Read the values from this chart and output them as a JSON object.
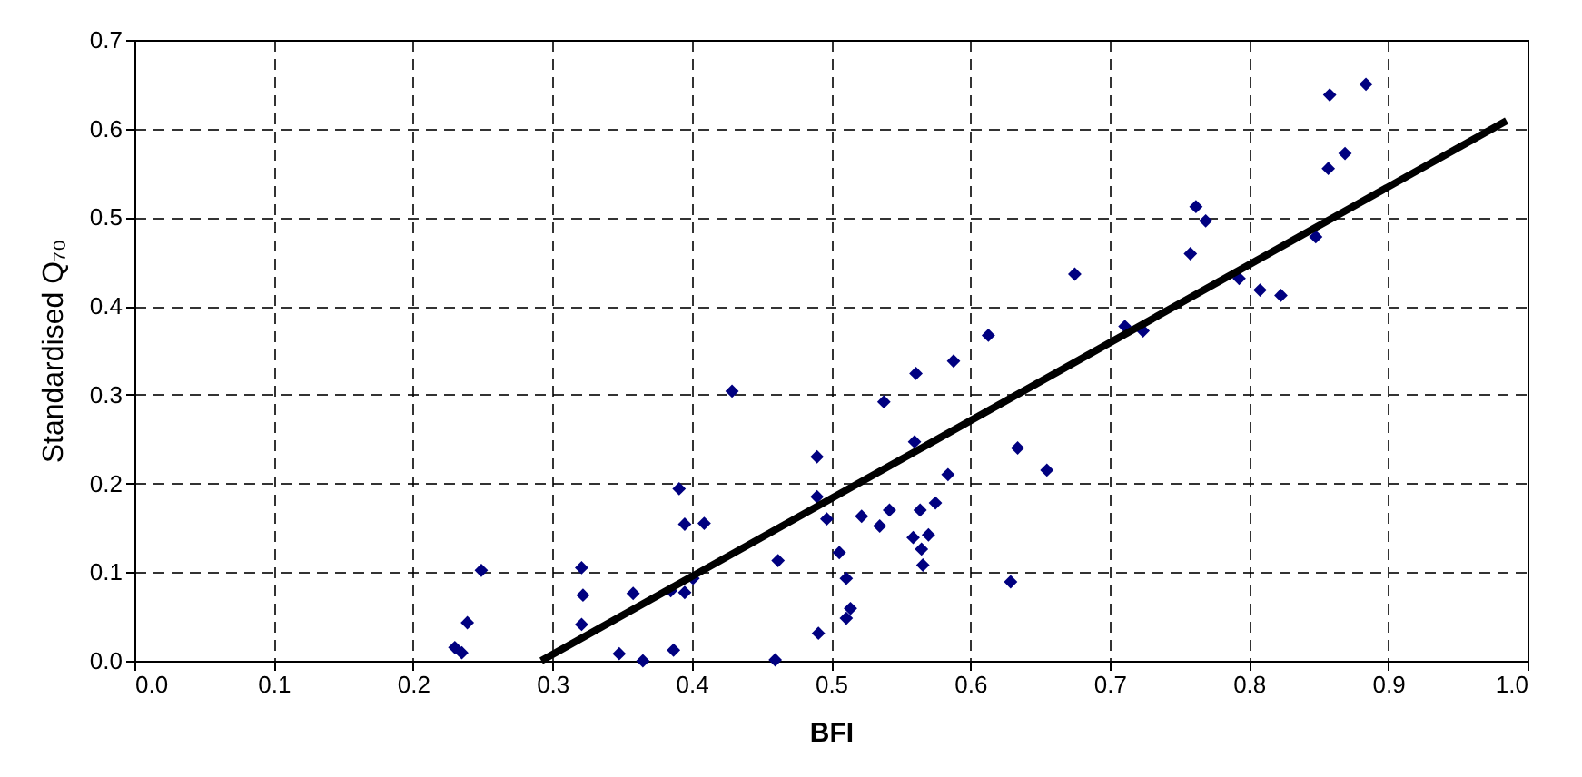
{
  "chart_data": {
    "type": "scatter",
    "xlabel": "BFI",
    "ylabel": "Standardised Q₇₀",
    "grid": true,
    "xlim": [
      0,
      1
    ],
    "ylim": [
      0,
      0.7
    ],
    "xticks": [
      {
        "value": 0,
        "label": "0.0"
      },
      {
        "value": 0.1,
        "label": "0.1"
      },
      {
        "value": 0.2,
        "label": "0.2"
      },
      {
        "value": 0.3,
        "label": "0.3"
      },
      {
        "value": 0.4,
        "label": "0.4"
      },
      {
        "value": 0.5,
        "label": "0.5"
      },
      {
        "value": 0.6,
        "label": "0.6"
      },
      {
        "value": 0.7,
        "label": "0.7"
      },
      {
        "value": 0.8,
        "label": "0.8"
      },
      {
        "value": 0.9,
        "label": "0.9"
      },
      {
        "value": 1,
        "label": "1.0"
      }
    ],
    "yticks": [
      {
        "value": 0,
        "label": "0.0"
      },
      {
        "value": 0.1,
        "label": "0.1"
      },
      {
        "value": 0.2,
        "label": "0.2"
      },
      {
        "value": 0.3,
        "label": "0.3"
      },
      {
        "value": 0.4,
        "label": "0.4"
      },
      {
        "value": 0.5,
        "label": "0.5"
      },
      {
        "value": 0.6,
        "label": "0.6"
      },
      {
        "value": 0.7,
        "label": "0.7"
      }
    ],
    "series": [
      {
        "marker": "diamond",
        "color": "#000080",
        "x": [
          0.249,
          0.239,
          0.23,
          0.235,
          0.321,
          0.322,
          0.321,
          0.348,
          0.365,
          0.358,
          0.387,
          0.385,
          0.395,
          0.401,
          0.391,
          0.395,
          0.409,
          0.429,
          0.462,
          0.46,
          0.49,
          0.49,
          0.497,
          0.491,
          0.506,
          0.511,
          0.514,
          0.511,
          0.522,
          0.535,
          0.542,
          0.538,
          0.561,
          0.56,
          0.564,
          0.575,
          0.584,
          0.559,
          0.57,
          0.565,
          0.566,
          0.588,
          0.613,
          0.634,
          0.655,
          0.629,
          0.675,
          0.711,
          0.724,
          0.758,
          0.762,
          0.769,
          0.793,
          0.808,
          0.823,
          0.848,
          0.857,
          0.869,
          0.858,
          0.884
        ],
        "values": [
          0.102,
          0.043,
          0.015,
          0.009,
          0.105,
          0.074,
          0.041,
          0.008,
          0.0,
          0.076,
          0.012,
          0.079,
          0.077,
          0.093,
          0.194,
          0.154,
          0.155,
          0.304,
          0.113,
          0.001,
          0.23,
          0.185,
          0.16,
          0.031,
          0.122,
          0.093,
          0.059,
          0.048,
          0.163,
          0.152,
          0.17,
          0.292,
          0.324,
          0.247,
          0.17,
          0.178,
          0.21,
          0.139,
          0.142,
          0.126,
          0.108,
          0.338,
          0.367,
          0.24,
          0.215,
          0.089,
          0.436,
          0.377,
          0.372,
          0.459,
          0.512,
          0.496,
          0.431,
          0.418,
          0.412,
          0.478,
          0.555,
          0.572,
          0.638,
          0.65
        ]
      },
      {
        "type": "line",
        "color": "#000000",
        "x": [
          0.292,
          0.985
        ],
        "values": [
          0.0,
          0.609
        ]
      }
    ]
  }
}
